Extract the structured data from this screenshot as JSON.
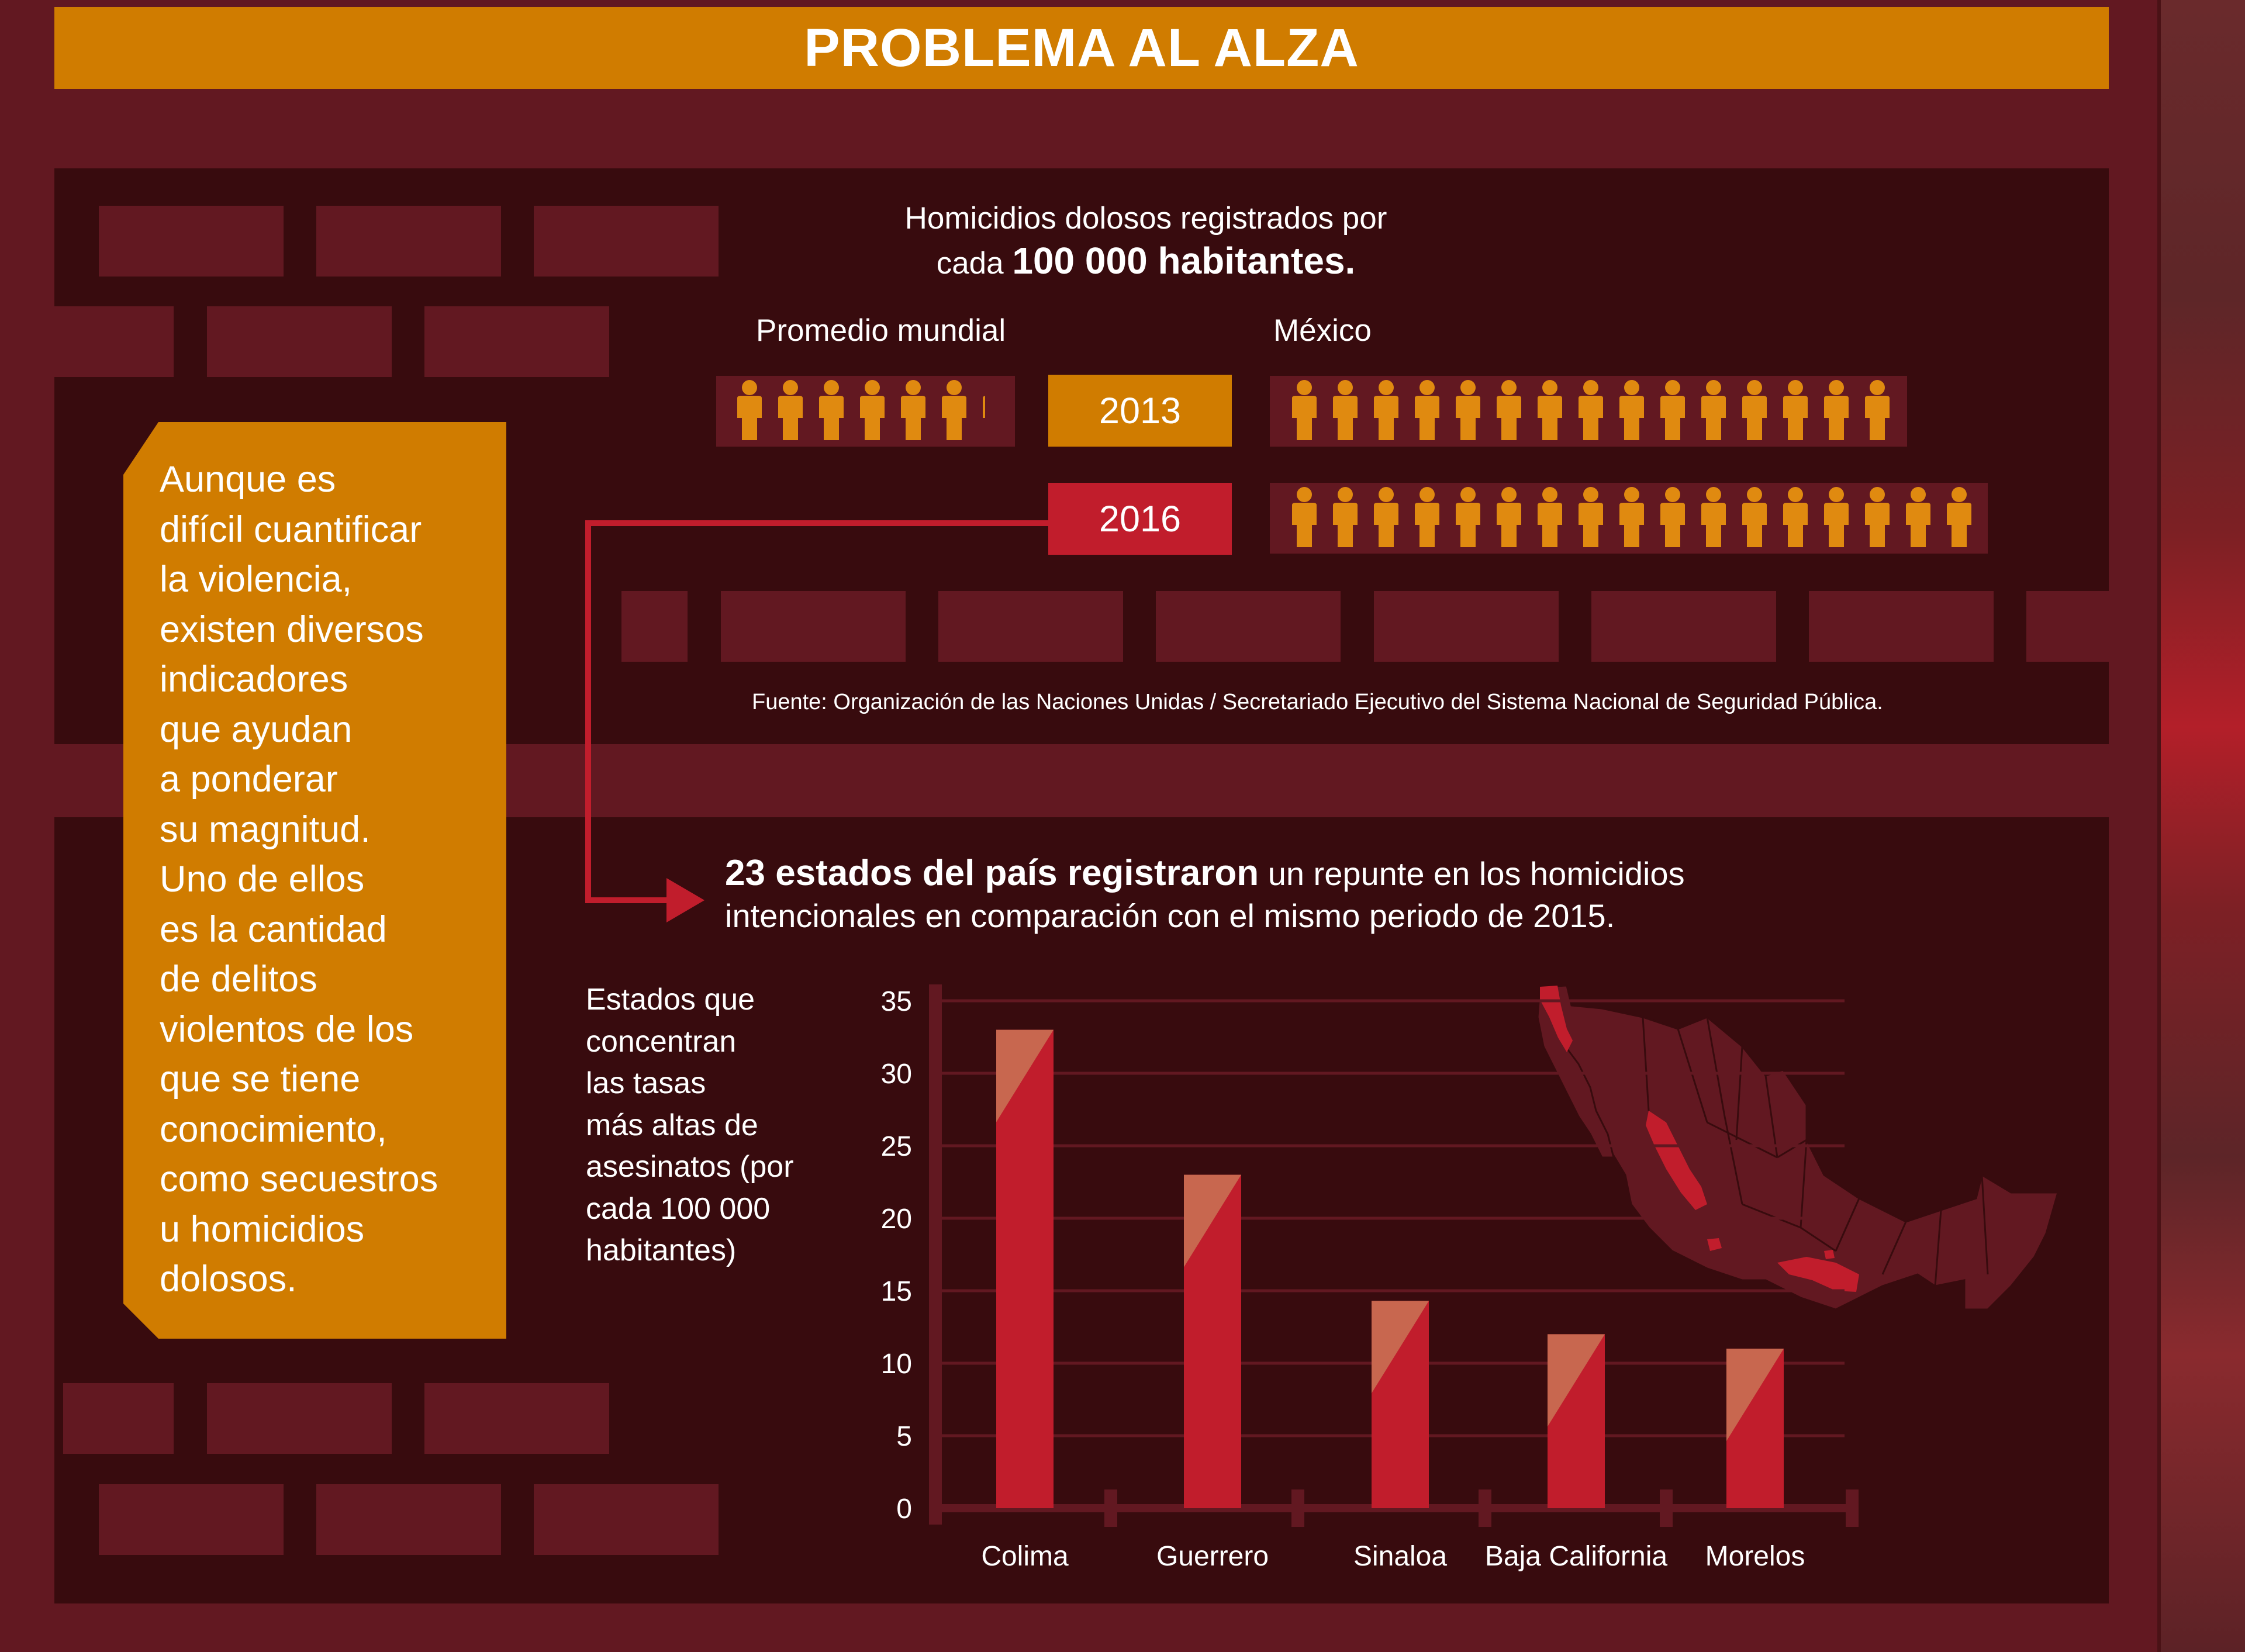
{
  "header": {
    "title": "PROBLEMA AL ALZA"
  },
  "sidebar_note": {
    "lines": [
      "Aunque es",
      "difícil cuantificar",
      "la violencia,",
      "existen diversos",
      "indicadores",
      "que ayudan",
      "a ponderar",
      "su magnitud.",
      "Uno de ellos",
      "es la cantidad",
      "de delitos",
      "violentos de los",
      "que se tiene",
      "conocimiento,",
      "como secuestros",
      "u homicidios",
      "dolosos."
    ]
  },
  "homicides": {
    "heading_line1": "Homicidios dolosos registrados por",
    "heading_line2_plain": "cada ",
    "heading_line2_bold": "100 000 habitantes.",
    "label_world": "Promedio mundial",
    "label_mexico": "México",
    "years": [
      {
        "year": "2013",
        "color": "#d07c00",
        "world_rate": 6.2,
        "mexico_rate": 15
      },
      {
        "year": "2016",
        "color": "#c11d2c",
        "mexico_rate": 17
      }
    ],
    "icon": "person-icon",
    "icon_color": "#e08a10",
    "source": "Fuente: Organización de las Naciones Unidas / Secretariado Ejecutivo del Sistema Nacional de Seguridad Pública."
  },
  "states_note": {
    "bold": "23 estados del país registraron",
    "rest_line1": " un repunte en los homicidios",
    "line2": "intencionales en comparación con el mismo periodo de 2015."
  },
  "chart_caption": {
    "lines": [
      "Estados que",
      "concentran",
      "las tasas",
      "más altas de",
      "asesinatos (por",
      "cada 100 000",
      "habitantes)"
    ]
  },
  "chart_data": {
    "type": "bar",
    "categories": [
      "Colima",
      "Guerrero",
      "Sinaloa",
      "Baja California",
      "Morelos"
    ],
    "values": [
      33,
      23,
      14.3,
      12,
      11
    ],
    "ylim": [
      0,
      35
    ],
    "yticks": [
      0,
      5,
      10,
      15,
      20,
      25,
      30,
      35
    ],
    "grid": true,
    "colors": {
      "bar": "#c11d2c",
      "bar_top": "#c8674f",
      "axis": "#621821",
      "background": "#380b0e"
    }
  },
  "map": {
    "name": "mexico-map-icon",
    "base_color": "#621821",
    "highlight_color": "#c11d2c",
    "highlighted_states": [
      "Baja California",
      "Sinaloa",
      "Colima",
      "Guerrero",
      "Morelos"
    ]
  }
}
